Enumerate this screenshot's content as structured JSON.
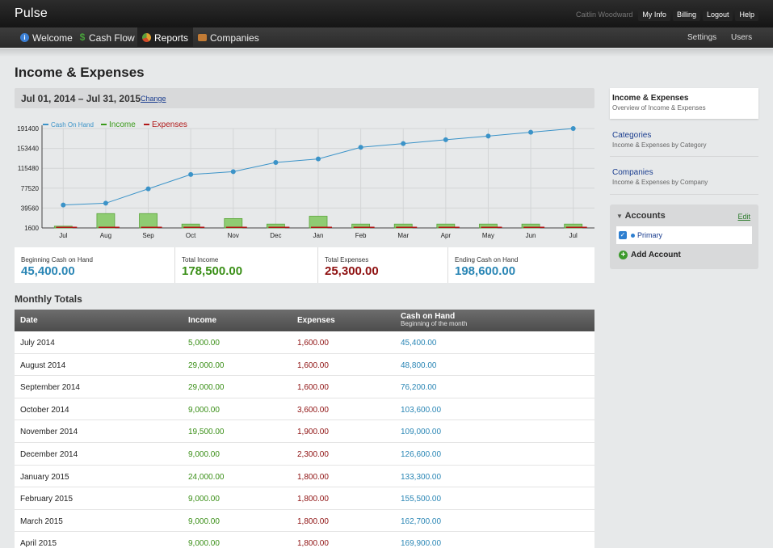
{
  "app": {
    "brand": "Pulse",
    "user": "Caitlin Woodward",
    "top_links": [
      "My Info",
      "Billing",
      "Logout",
      "Help"
    ]
  },
  "nav": {
    "items": [
      {
        "label": "Welcome",
        "icon": "info-icon",
        "color": "#3b7fd4"
      },
      {
        "label": "Cash Flow",
        "icon": "dollar-icon",
        "color": "#47a23b"
      },
      {
        "label": "Reports",
        "icon": "pie-chart-icon",
        "color": "#e0a030"
      },
      {
        "label": "Companies",
        "icon": "briefcase-icon",
        "color": "#c27b35"
      }
    ],
    "active": "Reports",
    "right": [
      "Settings",
      "Users"
    ]
  },
  "page": {
    "title": "Income & Expenses",
    "date_range": "Jul 01, 2014 – Jul 31, 2015",
    "change_label": "Change"
  },
  "chart_data": {
    "type": "bar",
    "legend": [
      {
        "name": "Cash On Hand",
        "color": "#3b93c8"
      },
      {
        "name": "Income",
        "color": "#3a9a1a"
      },
      {
        "name": "Expenses",
        "color": "#b01818"
      }
    ],
    "legend_position": "top-left",
    "categories": [
      "Jul",
      "Aug",
      "Sep",
      "Oct",
      "Nov",
      "Dec",
      "Jan",
      "Feb",
      "Mar",
      "Apr",
      "May",
      "Jun",
      "Jul"
    ],
    "y_ticks": [
      1600,
      39560,
      77520,
      115480,
      153440,
      191400
    ],
    "ylim": [
      1600,
      191400
    ],
    "grid": true,
    "series": [
      {
        "name": "Cash On Hand",
        "type": "line",
        "values": [
          45400,
          48800,
          76200,
          103600,
          109000,
          126600,
          133300,
          155500,
          162700,
          169900,
          177000,
          184300,
          191400
        ]
      },
      {
        "name": "Income",
        "type": "bar",
        "values": [
          5000,
          29000,
          29000,
          9000,
          19500,
          9000,
          24000,
          9000,
          9000,
          9000,
          9000,
          9000,
          9000
        ]
      },
      {
        "name": "Expenses",
        "type": "bar",
        "values": [
          1600,
          1600,
          1600,
          3600,
          1900,
          2300,
          1800,
          1800,
          1800,
          1800,
          1800,
          1800,
          1800
        ]
      }
    ]
  },
  "summary": [
    {
      "label": "Beginning Cash on Hand",
      "value": "45,400.00",
      "color": "#2a86b5"
    },
    {
      "label": "Total Income",
      "value": "178,500.00",
      "color": "#3a8f17"
    },
    {
      "label": "Total Expenses",
      "value": "25,300.00",
      "color": "#8e1010"
    },
    {
      "label": "Ending Cash on Hand",
      "value": "198,600.00",
      "color": "#2a86b5"
    }
  ],
  "monthly": {
    "title": "Monthly Totals",
    "headers": {
      "date": "Date",
      "income": "Income",
      "expenses": "Expenses",
      "cash": "Cash on Hand",
      "cash_sub": "Beginning of the month"
    },
    "rows": [
      {
        "date": "July 2014",
        "income": "5,000.00",
        "expenses": "1,600.00",
        "cash": "45,400.00"
      },
      {
        "date": "August 2014",
        "income": "29,000.00",
        "expenses": "1,600.00",
        "cash": "48,800.00"
      },
      {
        "date": "September 2014",
        "income": "29,000.00",
        "expenses": "1,600.00",
        "cash": "76,200.00"
      },
      {
        "date": "October 2014",
        "income": "9,000.00",
        "expenses": "3,600.00",
        "cash": "103,600.00"
      },
      {
        "date": "November 2014",
        "income": "19,500.00",
        "expenses": "1,900.00",
        "cash": "109,000.00"
      },
      {
        "date": "December 2014",
        "income": "9,000.00",
        "expenses": "2,300.00",
        "cash": "126,600.00"
      },
      {
        "date": "January 2015",
        "income": "24,000.00",
        "expenses": "1,800.00",
        "cash": "133,300.00"
      },
      {
        "date": "February 2015",
        "income": "9,000.00",
        "expenses": "1,800.00",
        "cash": "155,500.00"
      },
      {
        "date": "March 2015",
        "income": "9,000.00",
        "expenses": "1,800.00",
        "cash": "162,700.00"
      },
      {
        "date": "April 2015",
        "income": "9,000.00",
        "expenses": "1,800.00",
        "cash": "169,900.00"
      }
    ]
  },
  "sidebar": {
    "items": [
      {
        "title": "Income & Expenses",
        "subtitle": "Overview of Income & Expenses"
      },
      {
        "title": "Categories",
        "subtitle": "Income & Expenses by Category"
      },
      {
        "title": "Companies",
        "subtitle": "Income & Expenses by Company"
      }
    ],
    "accounts": {
      "title": "Accounts",
      "edit_label": "Edit",
      "items": [
        {
          "name": "Primary",
          "checked": true
        }
      ],
      "add_label": "Add Account"
    }
  }
}
